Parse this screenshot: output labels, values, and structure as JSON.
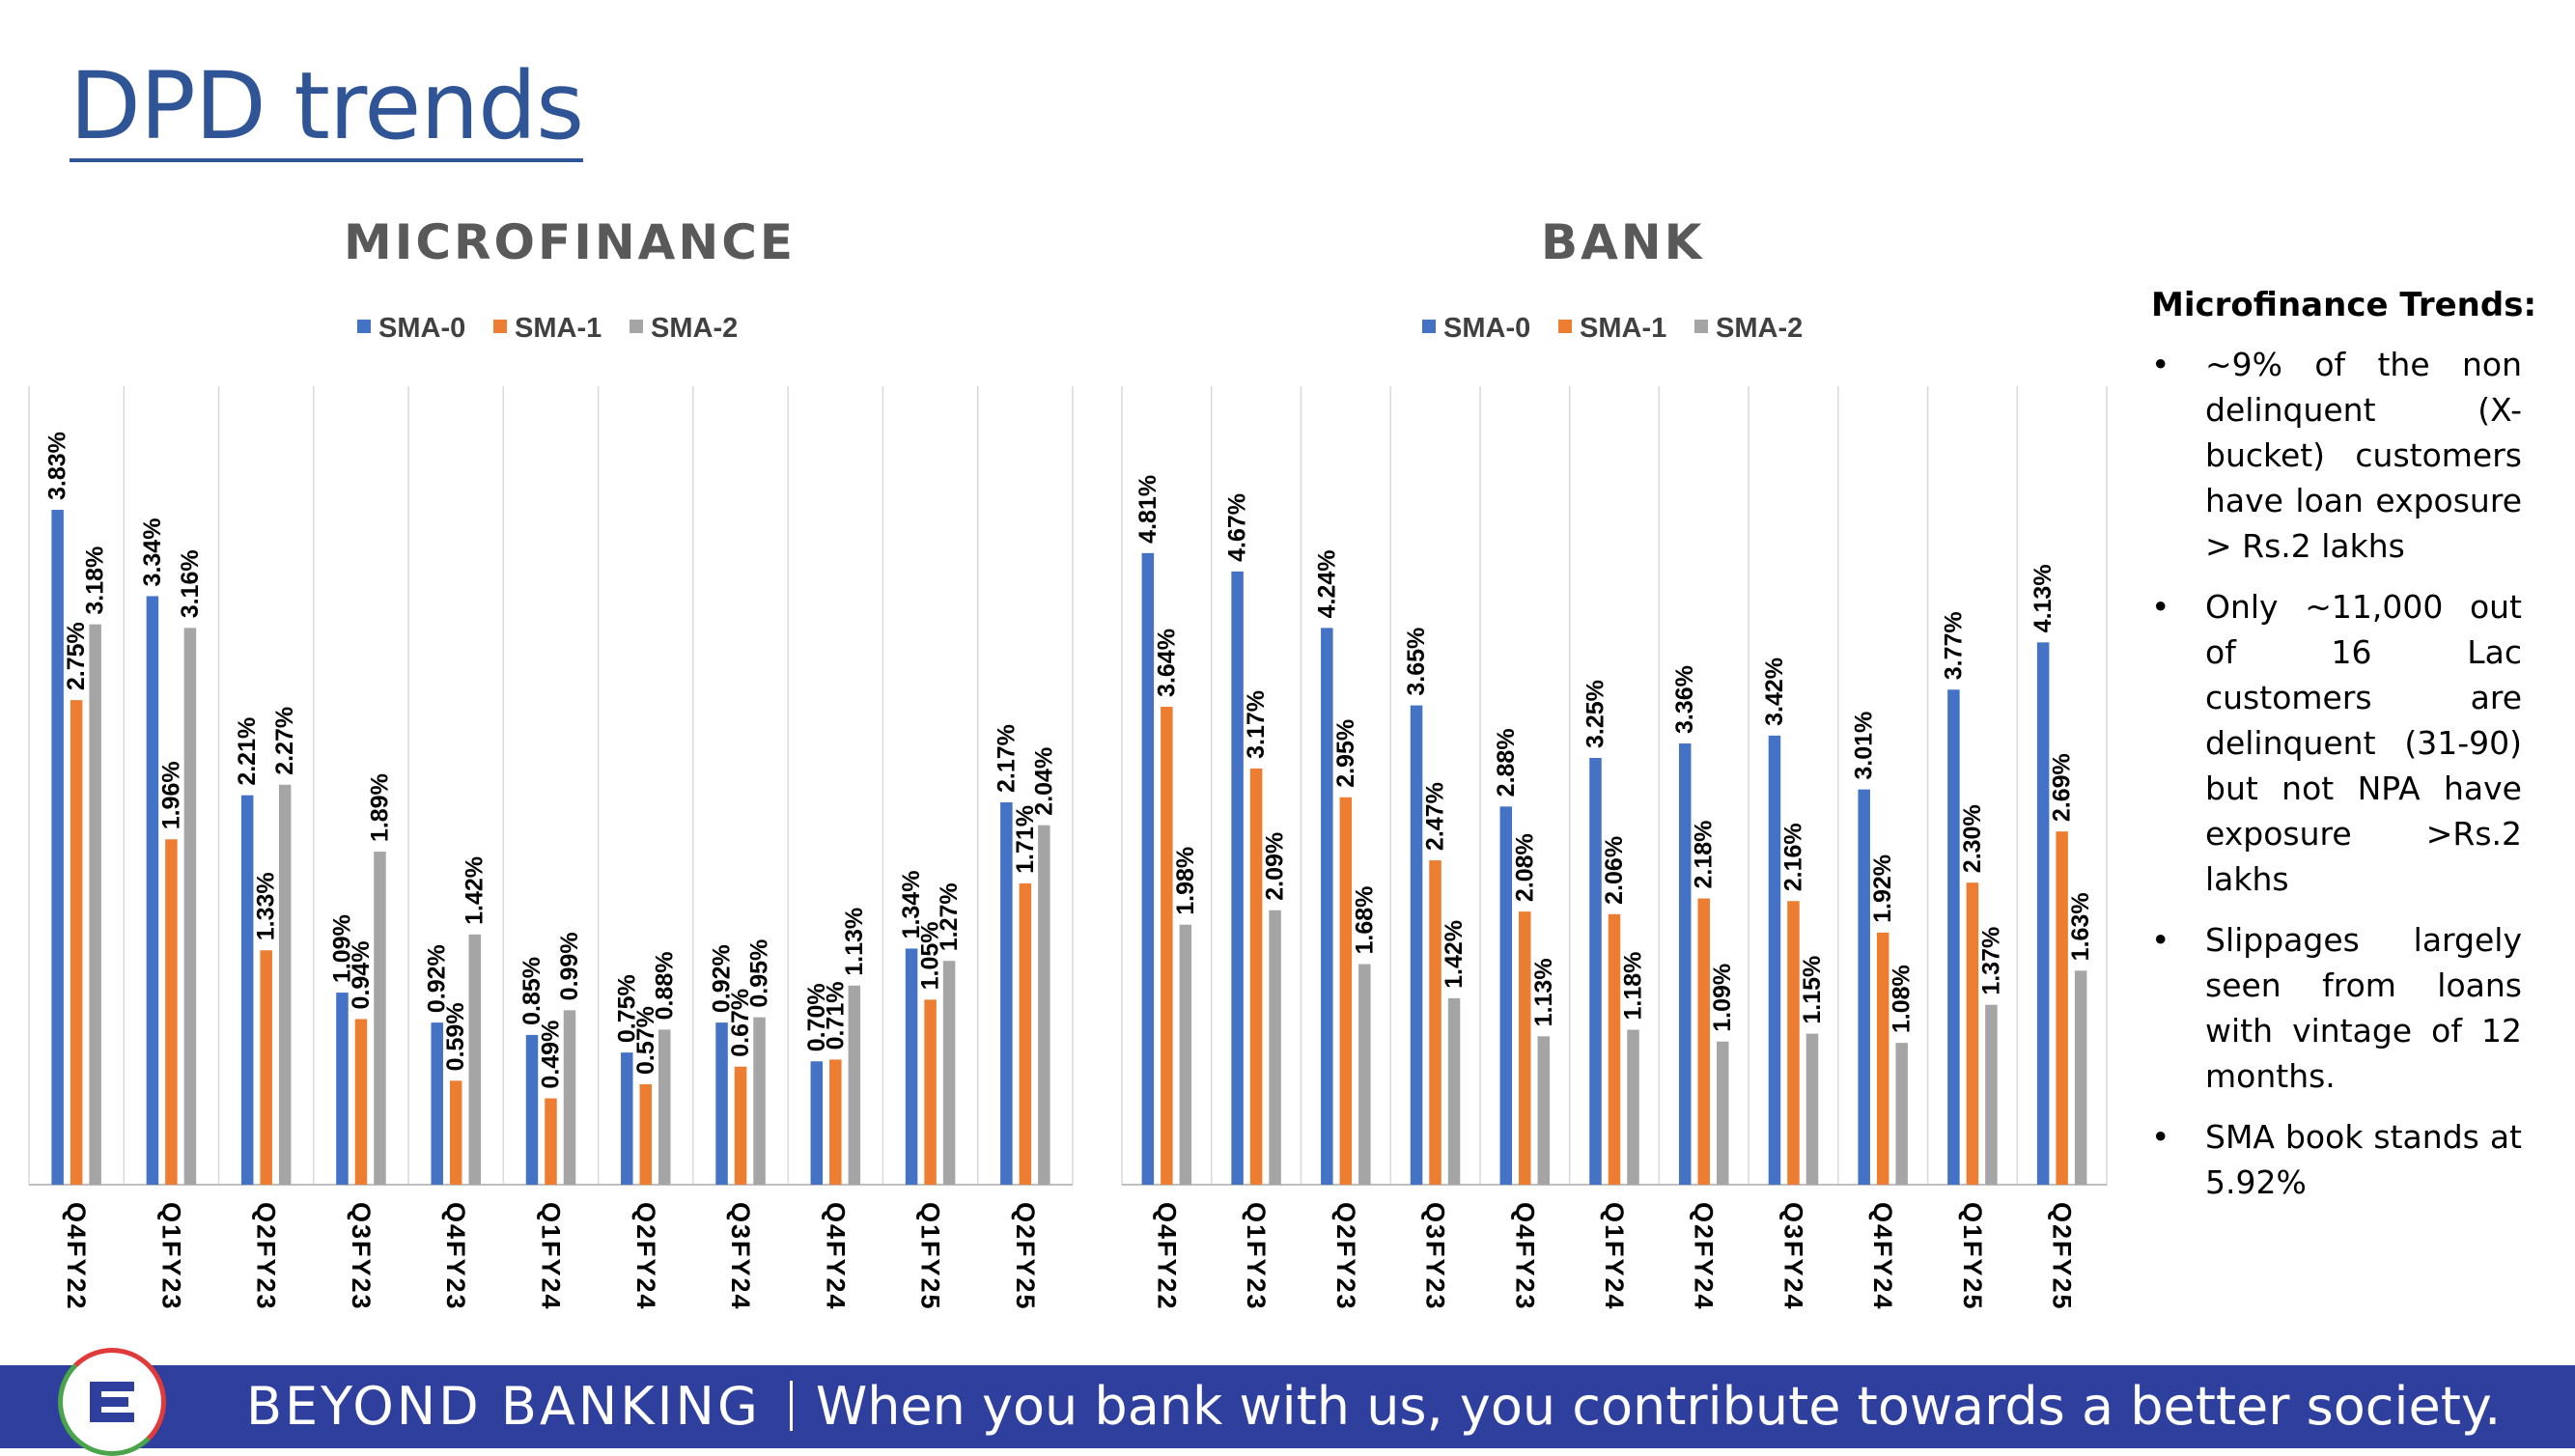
{
  "title": "DPD trends",
  "legend": [
    "SMA-0",
    "SMA-1",
    "SMA-2"
  ],
  "colors": {
    "sma0": "#4472c4",
    "sma1": "#ed7d31",
    "sma2": "#a5a5a5",
    "title": "#2f5597",
    "footer": "#2e3f9e"
  },
  "chart_data": [
    {
      "type": "bar",
      "title": "MICROFINANCE",
      "categories": [
        "Q4FY22",
        "Q1FY23",
        "Q2FY23",
        "Q3FY23",
        "Q4FY23",
        "Q1FY24",
        "Q2FY24",
        "Q3FY24",
        "Q4FY24",
        "Q1FY25",
        "Q2FY25"
      ],
      "series": [
        {
          "name": "SMA-0",
          "values": [
            3.83,
            3.34,
            2.21,
            1.09,
            0.92,
            0.85,
            0.75,
            0.92,
            0.7,
            1.34,
            2.17
          ]
        },
        {
          "name": "SMA-1",
          "values": [
            2.75,
            1.96,
            1.33,
            0.94,
            0.59,
            0.49,
            0.57,
            0.67,
            0.71,
            1.05,
            1.71
          ]
        },
        {
          "name": "SMA-2",
          "values": [
            3.18,
            3.16,
            2.27,
            1.89,
            1.42,
            0.99,
            0.88,
            0.95,
            1.13,
            1.27,
            2.04
          ]
        }
      ],
      "ylim": [
        0,
        4.5
      ],
      "legend_position": "top",
      "grid": "vertical"
    },
    {
      "type": "bar",
      "title": "BANK",
      "categories": [
        "Q4FY22",
        "Q1FY23",
        "Q2FY23",
        "Q3FY23",
        "Q4FY23",
        "Q1FY24",
        "Q2FY24",
        "Q3FY24",
        "Q4FY24",
        "Q1FY25",
        "Q2FY25"
      ],
      "series": [
        {
          "name": "SMA-0",
          "values": [
            4.81,
            4.67,
            4.24,
            3.65,
            2.88,
            3.25,
            3.36,
            3.42,
            3.01,
            3.77,
            4.13
          ]
        },
        {
          "name": "SMA-1",
          "values": [
            3.64,
            3.17,
            2.95,
            2.47,
            2.08,
            2.06,
            2.18,
            2.16,
            1.92,
            2.3,
            2.69
          ]
        },
        {
          "name": "SMA-2",
          "values": [
            1.98,
            2.09,
            1.68,
            1.42,
            1.13,
            1.18,
            1.09,
            1.15,
            1.08,
            1.37,
            1.63
          ]
        }
      ],
      "ylim": [
        0,
        5.5
      ],
      "legend_position": "top",
      "grid": "vertical"
    }
  ],
  "side_panel": {
    "title": "Microfinance Trends:",
    "bullet": "•",
    "items": [
      "~9% of the non delinquent (X-bucket) customers have loan exposure > Rs.2 lakhs",
      "Only ~11,000 out of 16 Lac customers are delinquent (31-90) but not NPA have exposure >Rs.2 lakhs",
      "Slippages largely seen from loans with vintage of 12 months.",
      "SMA book stands at 5.92%"
    ]
  },
  "footer": {
    "brand": "BEYOND BANKING",
    "tagline": "When you bank with us, you contribute towards a better society."
  }
}
